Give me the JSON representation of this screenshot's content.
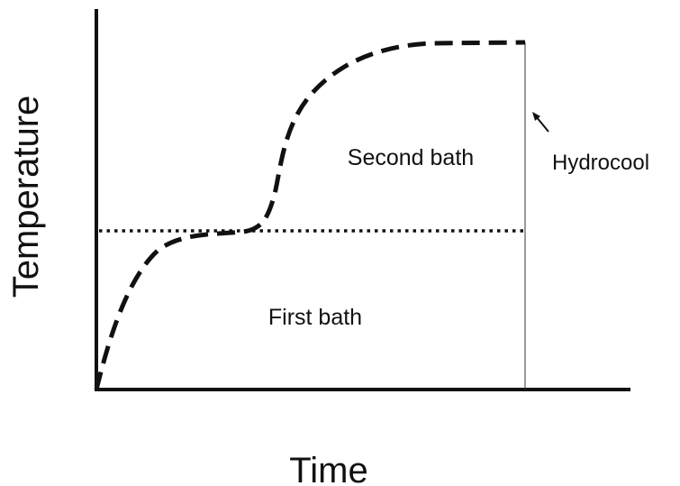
{
  "axes": {
    "x_label": "Time",
    "y_label": "Temperature"
  },
  "regions": {
    "upper": "Second bath",
    "lower": "First bath"
  },
  "annotation": "Hydrocool"
}
